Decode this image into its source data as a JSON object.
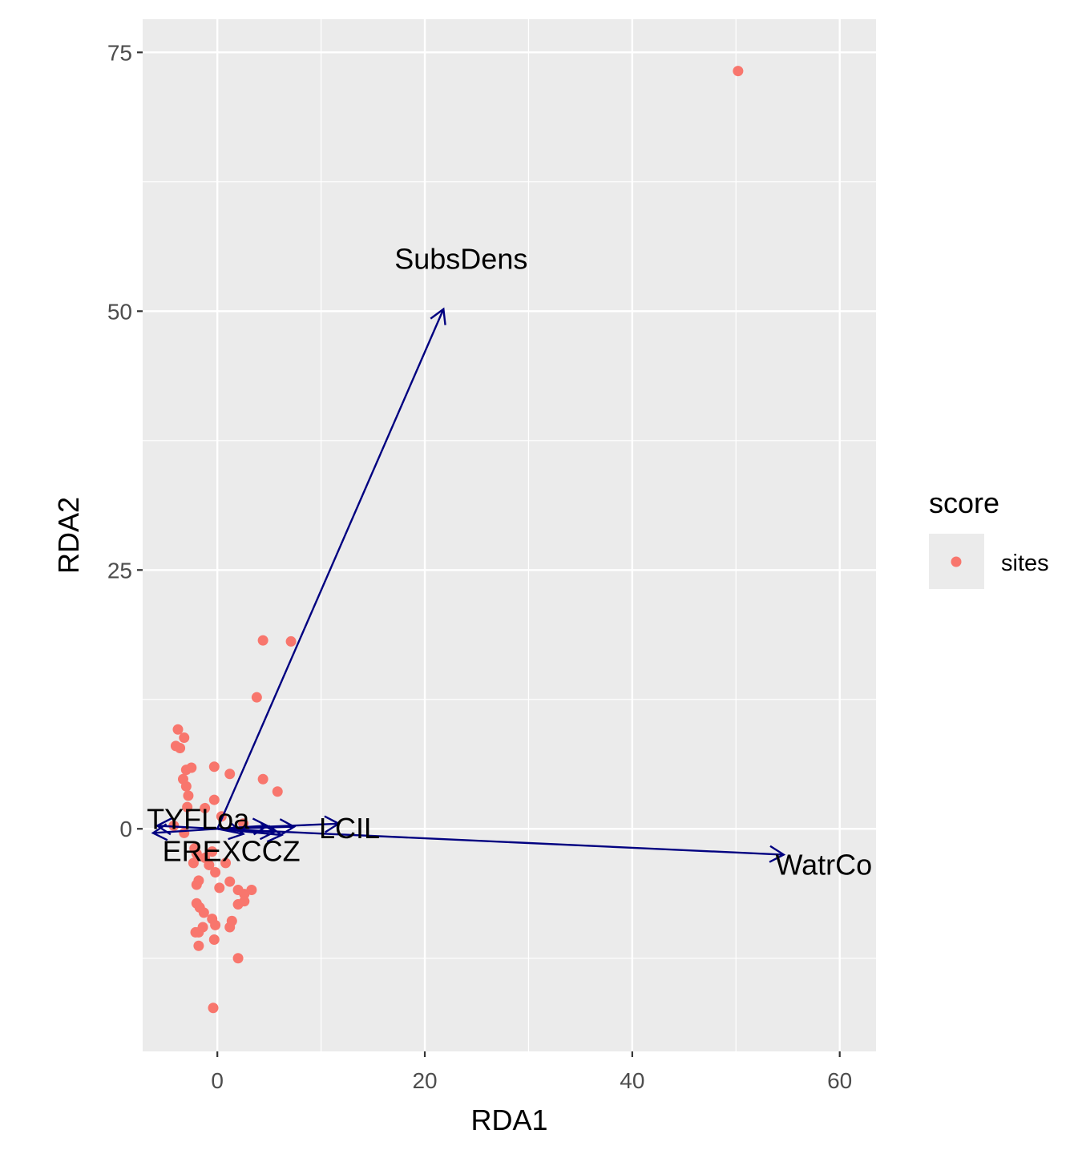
{
  "chart_data": {
    "type": "scatter",
    "xlabel": "RDA1",
    "ylabel": "RDA2",
    "xlim": [
      -7.2,
      63.5
    ],
    "ylim": [
      -21.5,
      78.2
    ],
    "x_ticks": [
      0,
      20,
      40,
      60
    ],
    "y_ticks": [
      0,
      25,
      50,
      75
    ],
    "x_tick_labels": [
      "0",
      "20",
      "40",
      "60"
    ],
    "y_tick_labels": [
      "0",
      "25",
      "50",
      "75"
    ],
    "legend": {
      "title": "score",
      "placement": "right",
      "entries": [
        {
          "label": "sites",
          "color": "#F8766D"
        }
      ]
    },
    "series": [
      {
        "name": "sites",
        "color": "#F8766D",
        "points": [
          [
            50.2,
            73.2
          ],
          [
            4.4,
            18.2
          ],
          [
            7.1,
            18.1
          ],
          [
            3.8,
            12.7
          ],
          [
            -3.8,
            9.6
          ],
          [
            -3.2,
            8.8
          ],
          [
            -4.0,
            8.0
          ],
          [
            -3.6,
            7.8
          ],
          [
            -3.0,
            5.7
          ],
          [
            -2.5,
            5.9
          ],
          [
            -0.3,
            6.0
          ],
          [
            1.2,
            5.3
          ],
          [
            4.4,
            4.8
          ],
          [
            -3.3,
            4.8
          ],
          [
            -3.0,
            4.1
          ],
          [
            5.8,
            3.6
          ],
          [
            -2.8,
            3.2
          ],
          [
            -0.3,
            2.8
          ],
          [
            -2.9,
            2.1
          ],
          [
            -1.2,
            2.0
          ],
          [
            0.4,
            1.2
          ],
          [
            -4.2,
            0.3
          ],
          [
            -3.2,
            -0.4
          ],
          [
            2.5,
            0.5
          ],
          [
            -2.2,
            -1.9
          ],
          [
            -0.5,
            -2.2
          ],
          [
            -1.2,
            -2.8
          ],
          [
            -2.0,
            -2.4
          ],
          [
            -2.3,
            -3.3
          ],
          [
            -0.8,
            -3.5
          ],
          [
            0.8,
            -3.3
          ],
          [
            -0.2,
            -4.2
          ],
          [
            -1.8,
            -5.0
          ],
          [
            -2.0,
            -5.4
          ],
          [
            1.2,
            -5.1
          ],
          [
            2.0,
            -5.9
          ],
          [
            2.6,
            -6.3
          ],
          [
            0.2,
            -5.7
          ],
          [
            3.3,
            -5.9
          ],
          [
            2.6,
            -7.0
          ],
          [
            2.0,
            -7.3
          ],
          [
            -1.7,
            -7.6
          ],
          [
            -2.0,
            -7.2
          ],
          [
            -1.3,
            -8.1
          ],
          [
            -0.5,
            -8.7
          ],
          [
            -0.2,
            -9.3
          ],
          [
            1.4,
            -8.9
          ],
          [
            -1.8,
            -10.0
          ],
          [
            -2.1,
            -10.0
          ],
          [
            -0.3,
            -10.7
          ],
          [
            -1.4,
            -9.5
          ],
          [
            1.2,
            -9.5
          ],
          [
            -1.8,
            -11.3
          ],
          [
            2.0,
            -12.5
          ],
          [
            -0.4,
            -17.3
          ]
        ]
      }
    ],
    "arrows": [
      {
        "label": "SubsDens",
        "x": 21.8,
        "y": 50.2,
        "label_x": 23.5,
        "label_y": 55.0,
        "anchor": "middle"
      },
      {
        "label": "WatrCo",
        "x": 54.6,
        "y": -2.5,
        "label_x": 53.8,
        "label_y": -3.5,
        "anchor": "start"
      },
      {
        "label": "LCIL",
        "x": 11.7,
        "y": 0.5,
        "label_x": 9.8,
        "label_y": 0.0,
        "anchor": "start"
      },
      {
        "label": "TYFLoa",
        "x": 4.8,
        "y": 0.3,
        "label_x": -6.8,
        "label_y": 0.9,
        "anchor": "start"
      },
      {
        "label": "EREXCCZ",
        "x": 5.5,
        "y": -0.3,
        "label_x": -5.3,
        "label_y": -2.2,
        "anchor": "start"
      },
      {
        "label": "",
        "x": 7.4,
        "y": 0.2
      },
      {
        "label": "",
        "x": 6.2,
        "y": -0.6
      },
      {
        "label": "",
        "x": -5.8,
        "y": 0.3
      },
      {
        "label": "",
        "x": -6.2,
        "y": -0.4
      },
      {
        "label": "",
        "x": 2.5,
        "y": -0.5
      }
    ],
    "arrow_color": "#000080"
  }
}
